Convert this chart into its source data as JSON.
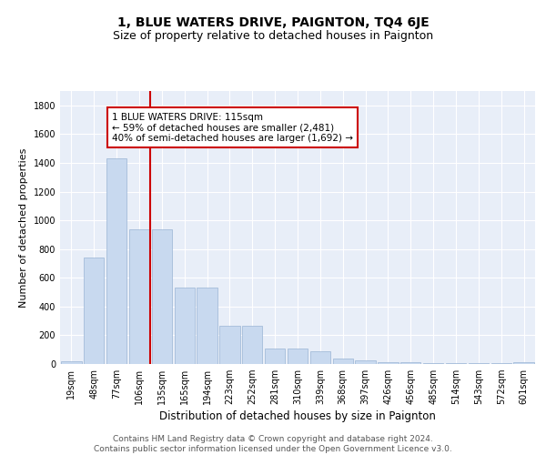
{
  "title": "1, BLUE WATERS DRIVE, PAIGNTON, TQ4 6JE",
  "subtitle": "Size of property relative to detached houses in Paignton",
  "xlabel": "Distribution of detached houses by size in Paignton",
  "ylabel": "Number of detached properties",
  "bar_values": [
    22,
    740,
    1430,
    940,
    935,
    530,
    530,
    265,
    265,
    110,
    110,
    90,
    40,
    25,
    15,
    15,
    5,
    5,
    5,
    5,
    15
  ],
  "bar_labels": [
    "19sqm",
    "48sqm",
    "77sqm",
    "106sqm",
    "135sqm",
    "165sqm",
    "194sqm",
    "223sqm",
    "252sqm",
    "281sqm",
    "310sqm",
    "339sqm",
    "368sqm",
    "397sqm",
    "426sqm",
    "456sqm",
    "485sqm",
    "514sqm",
    "543sqm",
    "572sqm",
    "601sqm"
  ],
  "bar_color": "#c8d9ef",
  "bar_edge_color": "#9ab4d4",
  "vline_x": 3.5,
  "vline_color": "#cc0000",
  "annotation_text": "1 BLUE WATERS DRIVE: 115sqm\n← 59% of detached houses are smaller (2,481)\n40% of semi-detached houses are larger (1,692) →",
  "annotation_box_color": "white",
  "annotation_box_edge_color": "#cc0000",
  "ylim": [
    0,
    1900
  ],
  "yticks": [
    0,
    200,
    400,
    600,
    800,
    1000,
    1200,
    1400,
    1600,
    1800
  ],
  "background_color": "#e8eef8",
  "grid_color": "white",
  "footer_text": "Contains HM Land Registry data © Crown copyright and database right 2024.\nContains public sector information licensed under the Open Government Licence v3.0.",
  "title_fontsize": 10,
  "subtitle_fontsize": 9,
  "xlabel_fontsize": 8.5,
  "ylabel_fontsize": 8,
  "tick_fontsize": 7,
  "annotation_fontsize": 7.5,
  "footer_fontsize": 6.5
}
